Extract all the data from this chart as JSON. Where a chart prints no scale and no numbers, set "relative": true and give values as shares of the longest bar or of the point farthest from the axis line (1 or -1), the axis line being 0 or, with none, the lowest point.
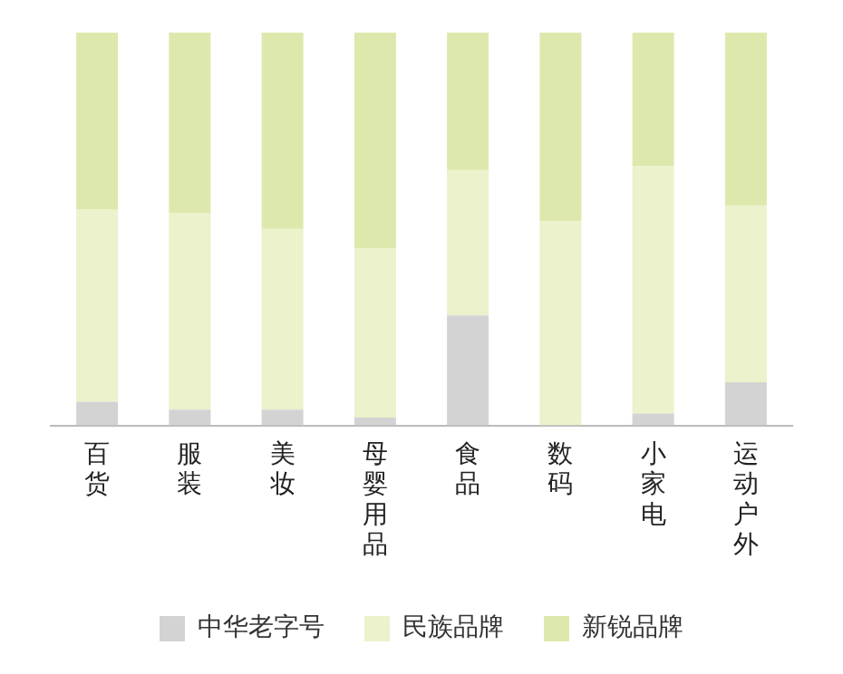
{
  "chart_data": {
    "type": "bar",
    "stacked": true,
    "relative": true,
    "categories": [
      "百货",
      "服装",
      "美妆",
      "母婴用品",
      "食品",
      "数码",
      "小家电",
      "运动户外"
    ],
    "series": [
      {
        "name": "中华老字号",
        "color": "#d3d3d3",
        "values": [
          0.06,
          0.04,
          0.04,
          0.02,
          0.28,
          0,
          0.03,
          0.11
        ]
      },
      {
        "name": "民族品牌",
        "color": "#ebf2cc",
        "values": [
          0.49,
          0.5,
          0.46,
          0.43,
          0.37,
          0.52,
          0.63,
          0.45
        ]
      },
      {
        "name": "新锐品牌",
        "color": "#dde9ac",
        "values": [
          0.45,
          0.46,
          0.5,
          0.55,
          0.35,
          0.48,
          0.34,
          0.44
        ]
      }
    ],
    "grid": false,
    "legend": "bottom"
  }
}
